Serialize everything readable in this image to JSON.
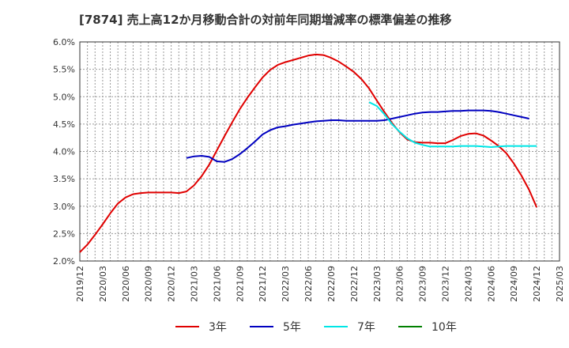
{
  "chart_data": {
    "type": "line",
    "title": "[7874]  売上高12か月移動合計の対前年同期増減率の標準偏差の推移",
    "xlabel": "",
    "ylabel": "",
    "ylim": [
      2.0,
      6.0
    ],
    "y_ticks": [
      "2.0%",
      "2.5%",
      "3.0%",
      "3.5%",
      "4.0%",
      "4.5%",
      "5.0%",
      "5.5%",
      "6.0%"
    ],
    "y_tick_values": [
      2.0,
      2.5,
      3.0,
      3.5,
      4.0,
      4.5,
      5.0,
      5.5,
      6.0
    ],
    "x_ticks": [
      "2019/12",
      "2020/03",
      "2020/06",
      "2020/09",
      "2020/12",
      "2021/03",
      "2021/06",
      "2021/09",
      "2021/12",
      "2022/03",
      "2022/06",
      "2022/09",
      "2022/12",
      "2023/03",
      "2023/06",
      "2023/09",
      "2023/12",
      "2024/03",
      "2024/06",
      "2024/09",
      "2024/12",
      "2025/03"
    ],
    "x_start": "2019/12",
    "x_month_span": 63,
    "grid": true,
    "legend_position": "bottom",
    "series": [
      {
        "name": "3年",
        "color": "#e00000",
        "start_month": 0,
        "values": [
          2.16,
          2.3,
          2.48,
          2.67,
          2.87,
          3.05,
          3.16,
          3.22,
          3.24,
          3.25,
          3.25,
          3.25,
          3.25,
          3.24,
          3.27,
          3.38,
          3.55,
          3.76,
          4.02,
          4.28,
          4.53,
          4.77,
          4.98,
          5.17,
          5.35,
          5.49,
          5.58,
          5.63,
          5.67,
          5.71,
          5.75,
          5.77,
          5.76,
          5.71,
          5.64,
          5.55,
          5.45,
          5.32,
          5.15,
          4.93,
          4.72,
          4.52,
          4.35,
          4.22,
          4.17,
          4.16,
          4.16,
          4.15,
          4.15,
          4.21,
          4.28,
          4.32,
          4.33,
          4.29,
          4.2,
          4.1,
          3.97,
          3.78,
          3.56,
          3.3,
          2.98
        ]
      },
      {
        "name": "5年",
        "color": "#0000c0",
        "start_month": 14,
        "values": [
          3.88,
          3.91,
          3.92,
          3.9,
          3.82,
          3.81,
          3.86,
          3.95,
          4.06,
          4.18,
          4.31,
          4.39,
          4.44,
          4.46,
          4.49,
          4.51,
          4.53,
          4.55,
          4.56,
          4.57,
          4.57,
          4.56,
          4.56,
          4.56,
          4.56,
          4.56,
          4.57,
          4.6,
          4.63,
          4.66,
          4.69,
          4.71,
          4.72,
          4.72,
          4.73,
          4.74,
          4.74,
          4.75,
          4.75,
          4.75,
          4.74,
          4.72,
          4.69,
          4.66,
          4.63,
          4.6
        ]
      },
      {
        "name": "7年",
        "color": "#00e6e6",
        "start_month": 38,
        "values": [
          4.9,
          4.83,
          4.68,
          4.5,
          4.36,
          4.24,
          4.16,
          4.12,
          4.09,
          4.09,
          4.09,
          4.09,
          4.1,
          4.1,
          4.1,
          4.09,
          4.08,
          4.09,
          4.1,
          4.1,
          4.1,
          4.1,
          4.1
        ]
      },
      {
        "name": "10年",
        "color": "#008000",
        "start_month": 0,
        "values": []
      }
    ]
  }
}
